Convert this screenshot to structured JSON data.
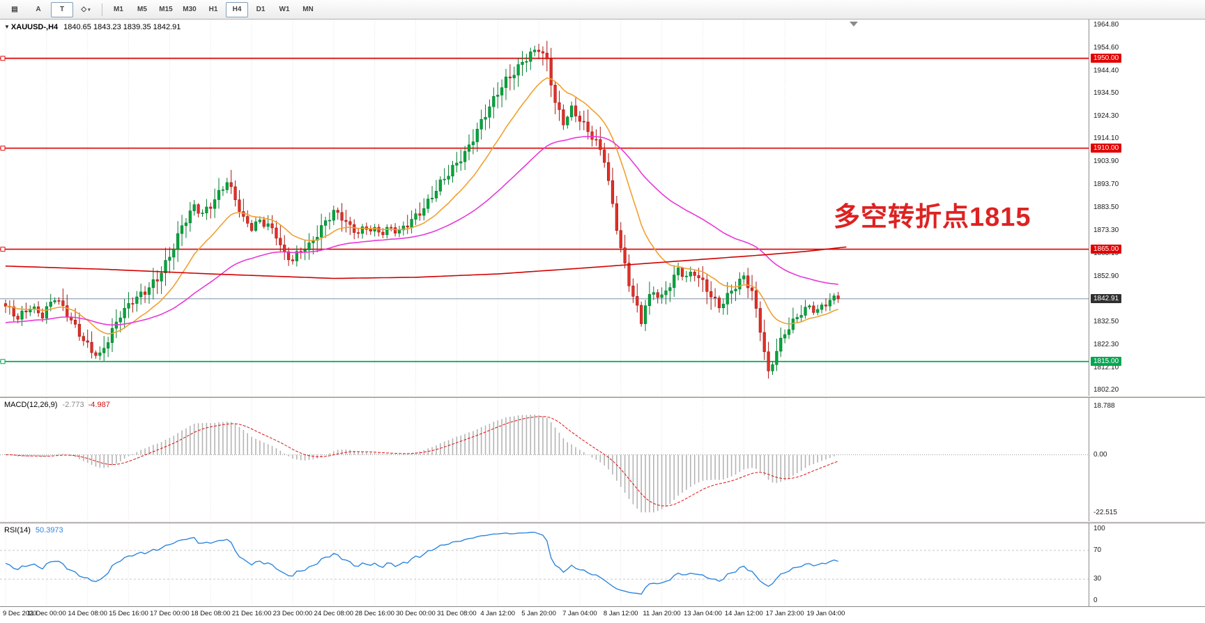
{
  "toolbar": {
    "tools": [
      {
        "name": "charts-list",
        "glyph": "▤",
        "active": false
      },
      {
        "name": "text-annotation",
        "glyph": "A",
        "active": false
      },
      {
        "name": "text-label",
        "glyph": "T",
        "active": true
      },
      {
        "name": "shapes",
        "glyph": "◇",
        "active": false,
        "caret": "▾"
      }
    ],
    "timeframes": [
      {
        "label": "M1",
        "active": false
      },
      {
        "label": "M5",
        "active": false
      },
      {
        "label": "M15",
        "active": false
      },
      {
        "label": "M30",
        "active": false
      },
      {
        "label": "H1",
        "active": false
      },
      {
        "label": "H4",
        "active": true
      },
      {
        "label": "D1",
        "active": false
      },
      {
        "label": "W1",
        "active": false
      },
      {
        "label": "MN",
        "active": false
      }
    ]
  },
  "chart": {
    "symbol_marker": "▼",
    "symbol": "XAUUSD-,H4",
    "ohlc": "1840.65 1843.23 1839.35 1842.91"
  },
  "chart_data": {
    "type": "candlestick+indicators",
    "symbol": "XAUUSD-",
    "timeframe": "H4",
    "ohlc_display": {
      "open": "1840.65",
      "high": "1843.23",
      "low": "1839.35",
      "close": "1842.91"
    },
    "bars": 204,
    "last_close": 1842.91,
    "price_range": {
      "top": 1964.8,
      "bottom": 1802.2
    },
    "price_axis_labels": [
      "1964.80",
      "1954.60",
      "1944.40",
      "1934.50",
      "1924.30",
      "1914.10",
      "1903.90",
      "1893.70",
      "1883.50",
      "1873.30",
      "1863.10",
      "1852.90",
      "",
      "1832.50",
      "1822.30",
      "1812.10",
      "1802.20"
    ],
    "current_price": {
      "value": "1842.91",
      "price": 1842.91
    },
    "levels": [
      {
        "price": 1950.0,
        "label": "1950.00",
        "kind": "resistance"
      },
      {
        "price": 1910.0,
        "label": "1910.00",
        "kind": "resistance"
      },
      {
        "price": 1865.0,
        "label": "1865.00",
        "kind": "resistance"
      },
      {
        "price": 1815.0,
        "label": "1815.00",
        "kind": "support"
      }
    ],
    "annotation": {
      "text": "多空转折点1815",
      "color": "#dd2222"
    },
    "price_path": [
      [
        0,
        1839
      ],
      [
        3,
        1834
      ],
      [
        6,
        1840
      ],
      [
        9,
        1836
      ],
      [
        12,
        1843
      ],
      [
        15,
        1836
      ],
      [
        18,
        1828
      ],
      [
        21,
        1820
      ],
      [
        23,
        1817
      ],
      [
        25,
        1824
      ],
      [
        28,
        1836
      ],
      [
        31,
        1843
      ],
      [
        34,
        1846
      ],
      [
        37,
        1851
      ],
      [
        40,
        1862
      ],
      [
        43,
        1876
      ],
      [
        46,
        1884
      ],
      [
        48,
        1880
      ],
      [
        50,
        1884
      ],
      [
        52,
        1890
      ],
      [
        54,
        1896
      ],
      [
        56,
        1888
      ],
      [
        58,
        1878
      ],
      [
        60,
        1874
      ],
      [
        62,
        1877
      ],
      [
        64,
        1876
      ],
      [
        66,
        1872
      ],
      [
        68,
        1863
      ],
      [
        70,
        1860
      ],
      [
        72,
        1864
      ],
      [
        74,
        1866
      ],
      [
        76,
        1872
      ],
      [
        78,
        1878
      ],
      [
        80,
        1882
      ],
      [
        82,
        1879
      ],
      [
        84,
        1874
      ],
      [
        86,
        1872
      ],
      [
        88,
        1875
      ],
      [
        90,
        1874
      ],
      [
        92,
        1873
      ],
      [
        94,
        1874
      ],
      [
        96,
        1872
      ],
      [
        98,
        1876
      ],
      [
        100,
        1880
      ],
      [
        102,
        1884
      ],
      [
        104,
        1889
      ],
      [
        106,
        1894
      ],
      [
        108,
        1898
      ],
      [
        110,
        1903
      ],
      [
        112,
        1908
      ],
      [
        114,
        1915
      ],
      [
        116,
        1922
      ],
      [
        118,
        1928
      ],
      [
        120,
        1934
      ],
      [
        122,
        1940
      ],
      [
        124,
        1944
      ],
      [
        126,
        1949
      ],
      [
        128,
        1952
      ],
      [
        130,
        1954
      ],
      [
        132,
        1948
      ],
      [
        134,
        1930
      ],
      [
        136,
        1922
      ],
      [
        138,
        1928
      ],
      [
        140,
        1923
      ],
      [
        142,
        1917
      ],
      [
        144,
        1912
      ],
      [
        146,
        1905
      ],
      [
        148,
        1885
      ],
      [
        150,
        1866
      ],
      [
        152,
        1850
      ],
      [
        154,
        1838
      ],
      [
        155,
        1832
      ],
      [
        156,
        1840
      ],
      [
        158,
        1846
      ],
      [
        160,
        1844
      ],
      [
        162,
        1850
      ],
      [
        164,
        1856
      ],
      [
        166,
        1852
      ],
      [
        168,
        1854
      ],
      [
        170,
        1850
      ],
      [
        172,
        1845
      ],
      [
        174,
        1840
      ],
      [
        176,
        1844
      ],
      [
        178,
        1848
      ],
      [
        180,
        1852
      ],
      [
        182,
        1846
      ],
      [
        184,
        1830
      ],
      [
        186,
        1810
      ],
      [
        188,
        1820
      ],
      [
        190,
        1827
      ],
      [
        192,
        1832
      ],
      [
        194,
        1837
      ],
      [
        196,
        1840
      ],
      [
        198,
        1838
      ],
      [
        200,
        1841
      ],
      [
        203,
        1842.91
      ]
    ],
    "moving_averages": [
      {
        "name": "ma-fast",
        "period": 16,
        "color": "#f0a030",
        "init": null
      },
      {
        "name": "ma-medium",
        "period": 55,
        "color": "#e838d8",
        "init": 1832
      },
      {
        "name": "ma-slow",
        "color": "#d20000",
        "path": [
          [
            0,
            1857.5
          ],
          [
            25,
            1856
          ],
          [
            50,
            1854
          ],
          [
            80,
            1852
          ],
          [
            100,
            1852.5
          ],
          [
            120,
            1854
          ],
          [
            140,
            1856.5
          ],
          [
            155,
            1858.5
          ],
          [
            170,
            1860.5
          ],
          [
            185,
            1862.5
          ],
          [
            195,
            1864
          ],
          [
            205,
            1866
          ]
        ]
      }
    ],
    "macd": {
      "label": "MACD(12,26,9)",
      "value_main": "-2.773",
      "value_signal": "-4.987",
      "fast": 12,
      "slow": 26,
      "signal": 9,
      "axis_labels": [
        "18.788",
        "0.00",
        "-22.515"
      ],
      "axis_max": 18.788,
      "axis_min": -22.515
    },
    "rsi": {
      "label": "RSI(14)",
      "value": "50.3973",
      "period": 14,
      "axis_labels": [
        "100",
        "70",
        "30",
        "0"
      ],
      "level_lines": [
        70,
        30
      ]
    },
    "time_labels": [
      "9 Dec 2020",
      "11 Dec 00:00",
      "14 Dec 08:00",
      "15 Dec 16:00",
      "17 Dec 00:00",
      "18 Dec 08:00",
      "21 Dec 16:00",
      "23 Dec 00:00",
      "24 Dec 08:00",
      "28 Dec 16:00",
      "30 Dec 00:00",
      "31 Dec 08:00",
      "4 Jan 12:00",
      "5 Jan 20:00",
      "7 Jan 04:00",
      "8 Jan 12:00",
      "11 Jan 20:00",
      "13 Jan 04:00",
      "14 Jan 12:00",
      "17 Jan 23:00",
      "19 Jan 04:00"
    ],
    "colors": {
      "candle_up": "#00a53c",
      "candle_up_dark": "#007a2c",
      "candle_down": "#e03028",
      "candle_down_dark": "#a81410",
      "level_red": "#dd1010",
      "level_green": "#00a651",
      "current_line": "#7f93a8",
      "current_badge_bg": "#303030",
      "badge_red_bg": "#e00000",
      "badge_green_bg": "#00a651",
      "macd_hist": "#b4b4b4",
      "macd_signal": "#e01010",
      "rsi_line": "#2e86de",
      "grid": "#e2e2e2"
    }
  }
}
